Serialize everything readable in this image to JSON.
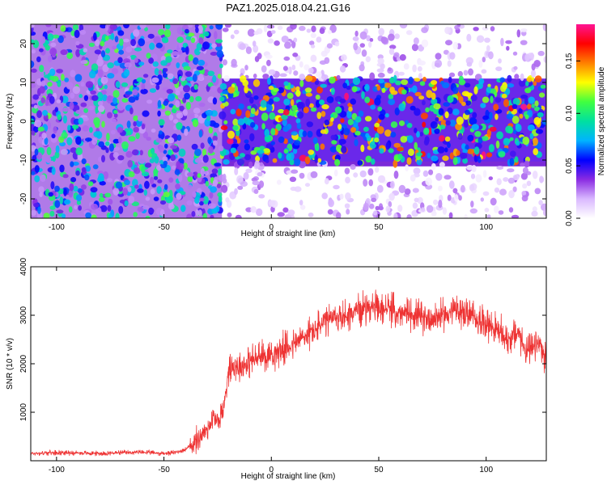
{
  "chart_data": [
    {
      "type": "heatmap",
      "title": "PAZ1.2025.018.04.21.G16",
      "xlabel": "Height of straight line (km)",
      "ylabel": "Frequency (Hz)",
      "xlim": [
        -112,
        128
      ],
      "ylim": [
        -25,
        25
      ],
      "x_ticks": [
        -100,
        -50,
        0,
        50,
        100
      ],
      "y_ticks": [
        -20,
        -10,
        0,
        10,
        20
      ],
      "colorbar": {
        "label": "Normalized spectral amplitude",
        "range": [
          0,
          0.185
        ],
        "ticks": [
          0.0,
          0.05,
          0.1,
          0.15
        ],
        "tick_labels": [
          "0.00",
          "0.05",
          "0.10",
          "0.15"
        ],
        "colormap": [
          "#ffffff",
          "#d9b8ff",
          "#8a2be2",
          "#0000ff",
          "#00b4ff",
          "#00e0a0",
          "#40ff40",
          "#ffff00",
          "#ff8000",
          "#ff0000",
          "#ff1493"
        ]
      },
      "regions": [
        {
          "x_range": [
            -112,
            -23
          ],
          "freq_range": [
            -25,
            25
          ],
          "level": "broadband noise"
        },
        {
          "x_range": [
            -23,
            128
          ],
          "freq_range": [
            -11,
            11
          ],
          "level": "strong signal band"
        },
        {
          "x_range": [
            -23,
            128
          ],
          "freq_range": [
            11,
            25
          ],
          "level": "weak"
        },
        {
          "x_range": [
            -23,
            128
          ],
          "freq_range": [
            -25,
            -11
          ],
          "level": "weak"
        }
      ],
      "grid": false
    },
    {
      "type": "line",
      "title": "",
      "xlabel": "Height of straight line (km)",
      "ylabel": "SNR (10 * v/v)",
      "xlim": [
        -112,
        128
      ],
      "ylim": [
        0,
        4000
      ],
      "x_ticks": [
        -100,
        -50,
        0,
        50,
        100
      ],
      "y_ticks": [
        1000,
        2000,
        3000,
        4000
      ],
      "color": "#ee3333",
      "grid": false,
      "series": [
        {
          "name": "",
          "x": [
            -112,
            -100,
            -90,
            -80,
            -70,
            -60,
            -50,
            -45,
            -40,
            -35,
            -30,
            -27,
            -25,
            -22,
            -20,
            -18,
            -15,
            -10,
            -5,
            0,
            5,
            10,
            15,
            20,
            25,
            30,
            35,
            40,
            45,
            50,
            55,
            60,
            65,
            70,
            75,
            80,
            85,
            90,
            95,
            100,
            105,
            110,
            115,
            118,
            120,
            125,
            128
          ],
          "y": [
            150,
            170,
            160,
            150,
            165,
            175,
            150,
            170,
            230,
            400,
            650,
            900,
            800,
            1100,
            1900,
            2000,
            1950,
            2050,
            2150,
            2200,
            2300,
            2400,
            2550,
            2700,
            2850,
            2950,
            3000,
            3100,
            3200,
            3100,
            3150,
            3000,
            3050,
            2950,
            2950,
            3000,
            3100,
            3050,
            2950,
            2850,
            2700,
            2500,
            2650,
            2300,
            2250,
            2400,
            2000
          ]
        }
      ]
    }
  ]
}
